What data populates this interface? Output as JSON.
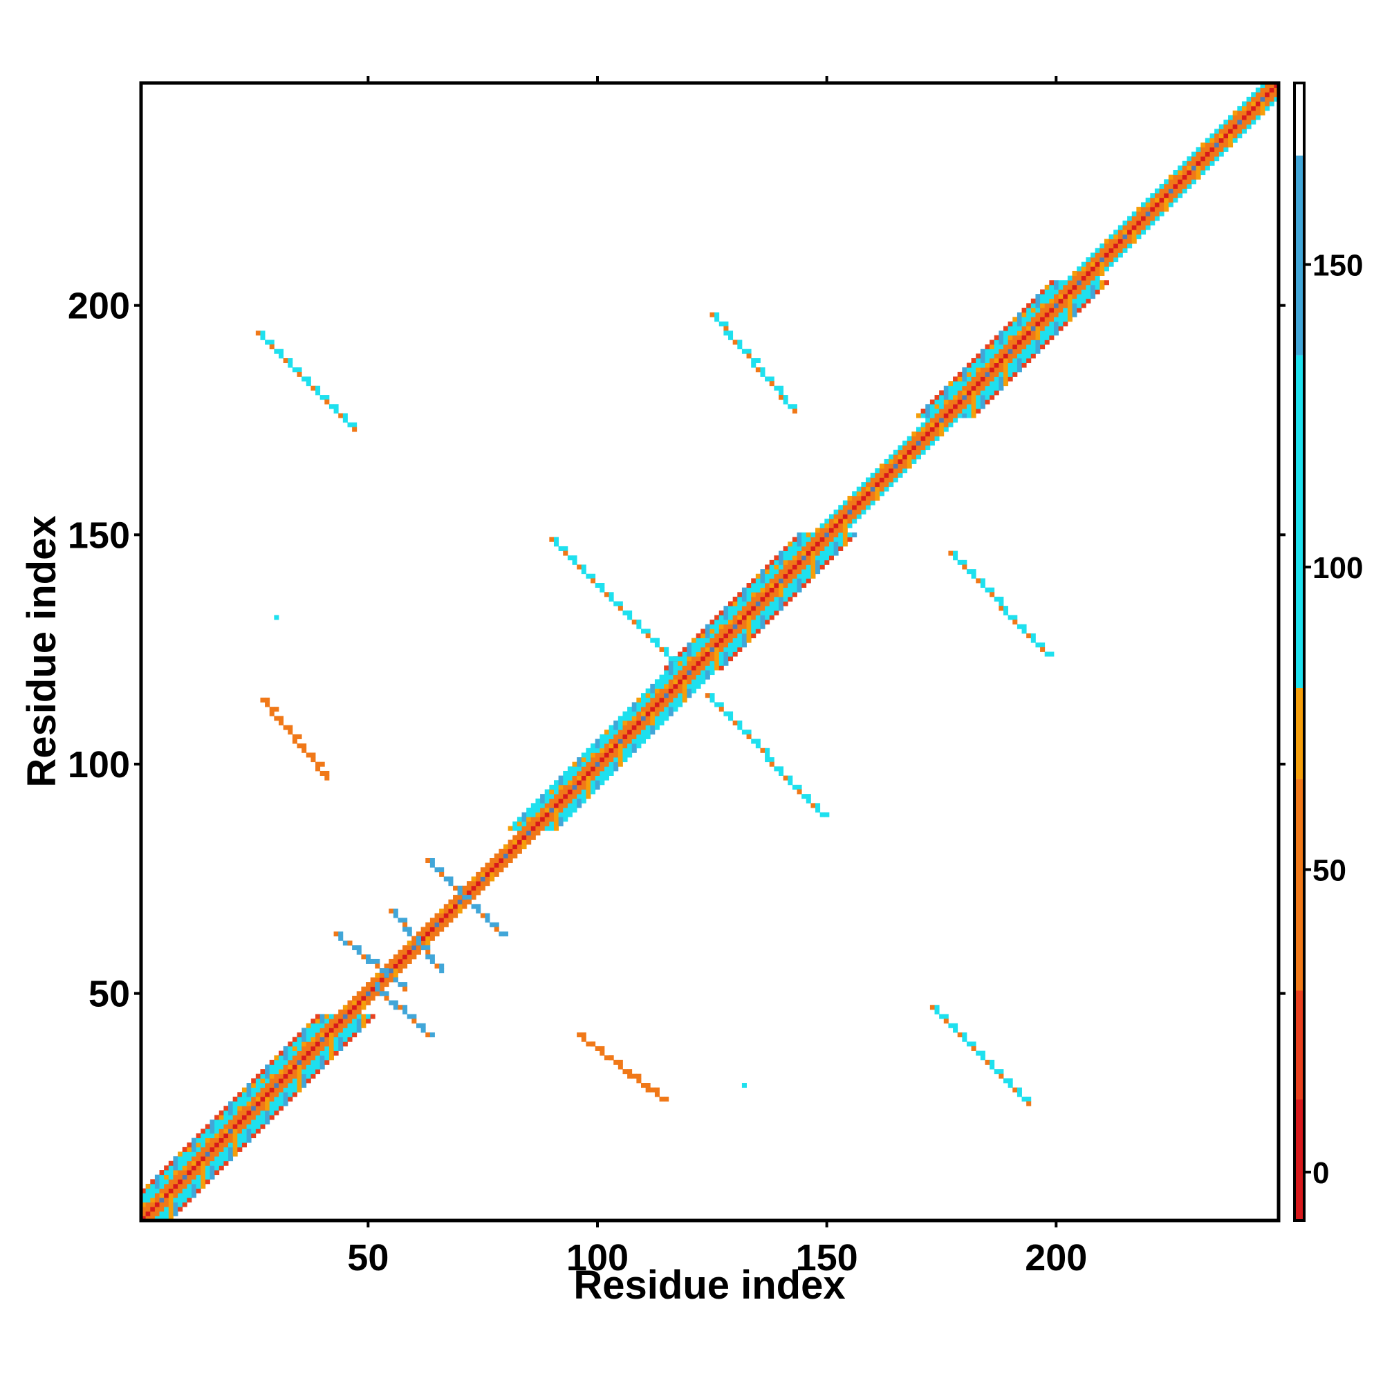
{
  "chart_data": {
    "type": "heatmap",
    "title": "",
    "xlabel": "Residue index",
    "ylabel": "Residue index",
    "xlim": [
      1,
      248
    ],
    "ylim": [
      1,
      248
    ],
    "x_ticks": [
      50,
      100,
      150,
      200
    ],
    "y_ticks": [
      50,
      100,
      150,
      200
    ],
    "colorbar": {
      "range": [
        -8,
        180
      ],
      "ticks": [
        0,
        50,
        100,
        150
      ],
      "bands": [
        {
          "from": -8,
          "to": 12,
          "color": "#d7191c"
        },
        {
          "from": 12,
          "to": 30,
          "color": "#e8401e"
        },
        {
          "from": 30,
          "to": 65,
          "color": "#f07818"
        },
        {
          "from": 65,
          "to": 80,
          "color": "#f59e0a"
        },
        {
          "from": 80,
          "to": 135,
          "color": "#1ee0ee"
        },
        {
          "from": 135,
          "to": 168,
          "color": "#41a6d8"
        },
        {
          "from": 168,
          "to": 180,
          "color": "#4d7ab8"
        }
      ],
      "top_color": "#ffffff"
    },
    "diagonal": {
      "from": [
        1,
        1
      ],
      "to": [
        248,
        248
      ],
      "band_halfwidths": [
        {
          "from": 1,
          "to": 45,
          "halfwidth": 6
        },
        {
          "from": 45,
          "to": 85,
          "halfwidth": 2
        },
        {
          "from": 85,
          "to": 120,
          "halfwidth": 5
        },
        {
          "from": 120,
          "to": 150,
          "halfwidth": 6
        },
        {
          "from": 150,
          "to": 175,
          "halfwidth": 3
        },
        {
          "from": 175,
          "to": 205,
          "halfwidth": 6
        },
        {
          "from": 205,
          "to": 248,
          "halfwidth": 3
        }
      ]
    },
    "contact_segments": [
      {
        "from": [
          26,
          194
        ],
        "to": [
          47,
          173
        ],
        "value": 95
      },
      {
        "from": [
          173,
          47
        ],
        "to": [
          194,
          26
        ],
        "value": 95
      },
      {
        "from": [
          27,
          114
        ],
        "to": [
          41,
          97
        ],
        "value": 65
      },
      {
        "from": [
          96,
          41
        ],
        "to": [
          114,
          27
        ],
        "value": 65
      },
      {
        "from": [
          90,
          149
        ],
        "to": [
          116,
          123
        ],
        "value": 120
      },
      {
        "from": [
          124,
          115
        ],
        "to": [
          149,
          89
        ],
        "value": 130
      },
      {
        "from": [
          125,
          198
        ],
        "to": [
          143,
          177
        ],
        "value": 95
      },
      {
        "from": [
          177,
          146
        ],
        "to": [
          198,
          124
        ],
        "value": 95
      },
      {
        "from": [
          43,
          63
        ],
        "to": [
          58,
          51
        ],
        "value": 150
      },
      {
        "from": [
          51,
          52
        ],
        "to": [
          63,
          41
        ],
        "value": 140
      },
      {
        "from": [
          55,
          68
        ],
        "to": [
          66,
          55
        ],
        "value": 160
      },
      {
        "from": [
          63,
          79
        ],
        "to": [
          79,
          63
        ],
        "value": 160
      }
    ],
    "isolated_points": [
      {
        "x": 30,
        "y": 132,
        "value": 100
      },
      {
        "x": 132,
        "y": 30,
        "value": 100
      }
    ]
  }
}
